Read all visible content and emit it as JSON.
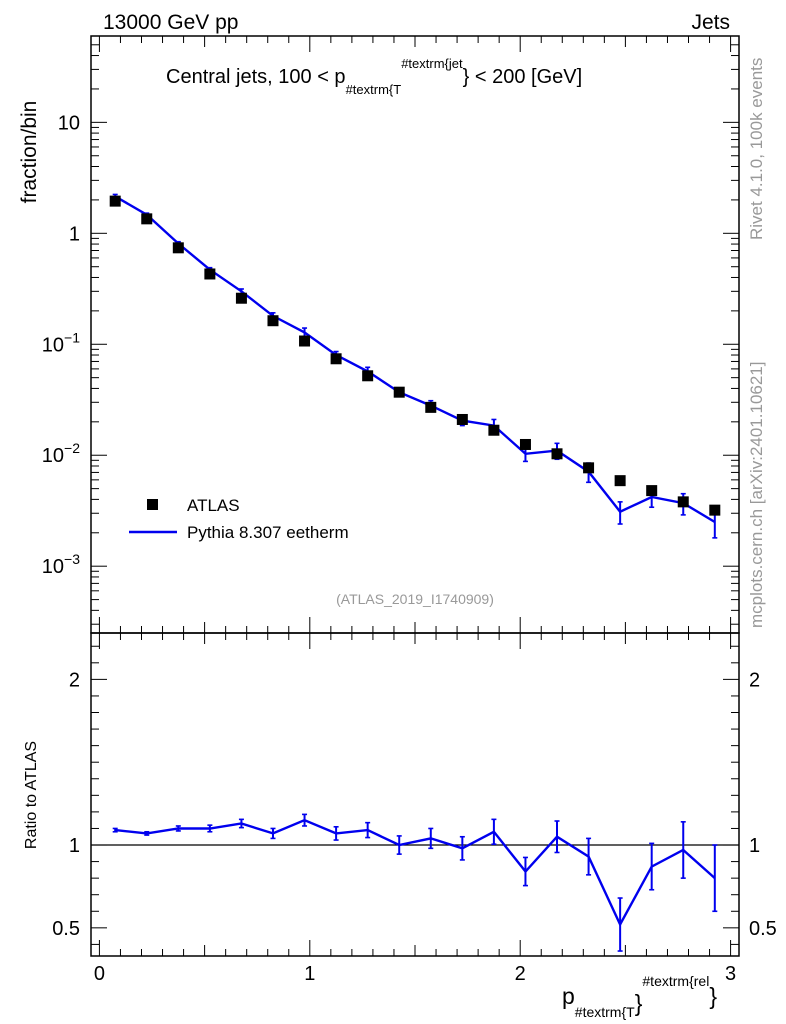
{
  "header": {
    "left": "13000 GeV pp",
    "right": "Jets"
  },
  "side_labels": {
    "rivet": "Rivet 4.1.0,  100k events",
    "mcplots": "mcplots.cern.ch [arXiv:2401.10621]"
  },
  "analysis_id": "(ATLAS_2019_I1740909)",
  "colors": {
    "data": "#000000",
    "mc": "#0000ee",
    "ref_line": "#000000",
    "side_text": "#999999"
  },
  "chart_data": [
    {
      "type": "scatter",
      "panel": "main",
      "title": "Central jets, 100 < p",
      "title_sub": "#textrm{T",
      "title_sup": "#textrm{jet",
      "title_tail": "} < 200 [GeV]",
      "ylabel": "fraction/bin",
      "yscale": "log",
      "ylim": [
        0.00025,
        60
      ],
      "xlim": [
        -0.04,
        3.04
      ],
      "y_ticks": [
        {
          "value": 10,
          "base": "10",
          "exp": ""
        },
        {
          "value": 1,
          "base": "1",
          "exp": ""
        },
        {
          "value": 0.1,
          "base": "10",
          "exp": "−1"
        },
        {
          "value": 0.01,
          "base": "10",
          "exp": "−2"
        },
        {
          "value": 0.001,
          "base": "10",
          "exp": "−3"
        }
      ],
      "legend": {
        "position": "lower-left",
        "data_label": "ATLAS",
        "mc_label": "Pythia 8.307 eetherm"
      },
      "x": [
        0.075,
        0.225,
        0.375,
        0.525,
        0.675,
        0.825,
        0.975,
        1.125,
        1.275,
        1.425,
        1.575,
        1.725,
        1.875,
        2.025,
        2.175,
        2.325,
        2.475,
        2.625,
        2.775,
        2.925
      ],
      "series": [
        {
          "name": "ATLAS",
          "values": [
            1.95,
            1.35,
            0.74,
            0.43,
            0.26,
            0.163,
            0.107,
            0.074,
            0.052,
            0.037,
            0.027,
            0.021,
            0.0168,
            0.0125,
            0.0103,
            0.0077,
            0.0059,
            0.0048,
            0.0038,
            0.0032
          ]
        },
        {
          "name": "Pythia 8.307 eetherm",
          "values": [
            2.15,
            1.47,
            0.81,
            0.47,
            0.3,
            0.18,
            0.128,
            0.08,
            0.057,
            0.037,
            0.028,
            0.0205,
            0.0185,
            0.0103,
            0.011,
            0.0071,
            0.0031,
            0.0042,
            0.0037,
            0.0025
          ],
          "err_lo": [
            0.09,
            0.05,
            0.03,
            0.02,
            0.015,
            0.012,
            0.012,
            0.006,
            0.005,
            0.003,
            0.003,
            0.002,
            0.0025,
            0.0015,
            0.0018,
            0.0014,
            0.0007,
            0.0008,
            0.0008,
            0.0007
          ],
          "err_hi": [
            0.09,
            0.05,
            0.03,
            0.02,
            0.015,
            0.012,
            0.012,
            0.006,
            0.005,
            0.003,
            0.003,
            0.002,
            0.0025,
            0.0015,
            0.0018,
            0.0014,
            0.0007,
            0.0008,
            0.0008,
            0.0007
          ]
        }
      ]
    },
    {
      "type": "line",
      "panel": "ratio",
      "ylabel": "Ratio to ATLAS",
      "xlabel": "p",
      "xlabel_sub": "#textrm{T",
      "xlabel_sup": "#textrm{rel",
      "xlabel_close": "}",
      "ylim": [
        0.33,
        2.28
      ],
      "xlim": [
        -0.04,
        3.04
      ],
      "y_ticks": [
        {
          "value": 0.5,
          "label": "0.5"
        },
        {
          "value": 1,
          "label": "1"
        },
        {
          "value": 2,
          "label": "2"
        }
      ],
      "x_ticks": [
        {
          "value": 0,
          "label": "0"
        },
        {
          "value": 1,
          "label": "1"
        },
        {
          "value": 2,
          "label": "2"
        },
        {
          "value": 3,
          "label": "3"
        }
      ],
      "reference_value": 1,
      "x": [
        0.075,
        0.225,
        0.375,
        0.525,
        0.675,
        0.825,
        0.975,
        1.125,
        1.275,
        1.425,
        1.575,
        1.725,
        1.875,
        2.025,
        2.175,
        2.325,
        2.475,
        2.625,
        2.775,
        2.925
      ],
      "series": [
        {
          "name": "Pythia 8.307 eetherm / ATLAS",
          "values": [
            1.09,
            1.07,
            1.1,
            1.1,
            1.13,
            1.07,
            1.15,
            1.07,
            1.09,
            1.0,
            1.04,
            0.98,
            1.08,
            0.84,
            1.05,
            0.93,
            0.52,
            0.87,
            0.97,
            0.8
          ],
          "err_lo": [
            0.01,
            0.01,
            0.015,
            0.02,
            0.025,
            0.03,
            0.035,
            0.04,
            0.045,
            0.055,
            0.06,
            0.07,
            0.075,
            0.085,
            0.095,
            0.11,
            0.16,
            0.14,
            0.17,
            0.2
          ],
          "err_hi": [
            0.01,
            0.01,
            0.015,
            0.02,
            0.025,
            0.03,
            0.035,
            0.04,
            0.045,
            0.055,
            0.06,
            0.07,
            0.075,
            0.085,
            0.095,
            0.11,
            0.16,
            0.14,
            0.17,
            0.2
          ]
        }
      ]
    }
  ]
}
